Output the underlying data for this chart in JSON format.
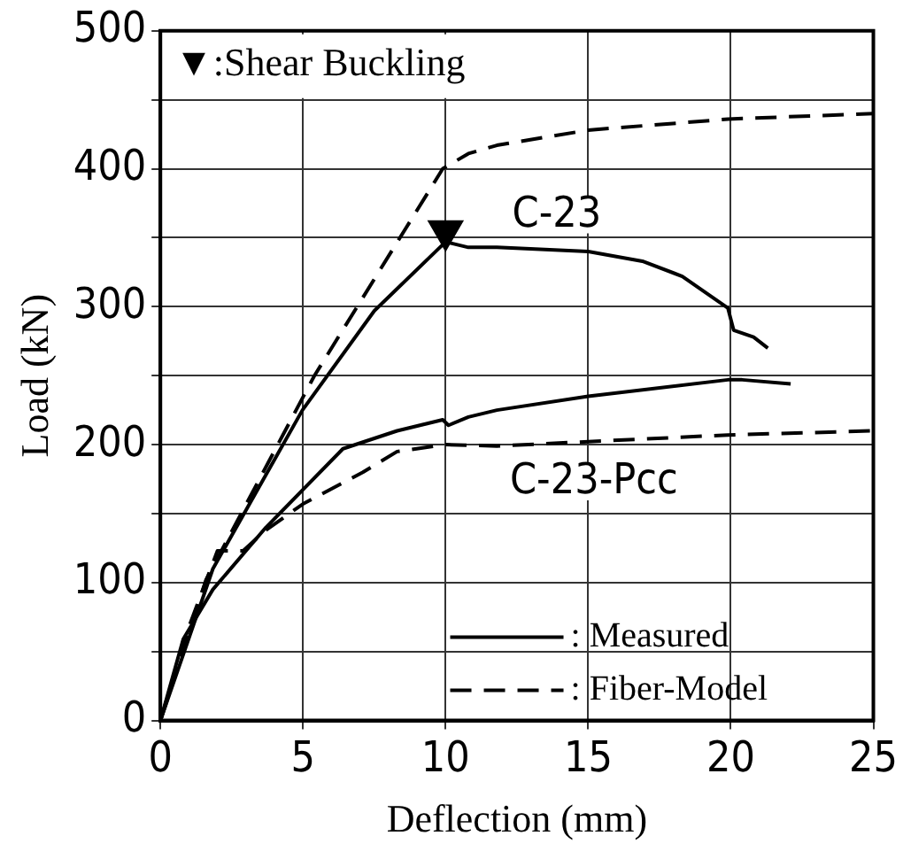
{
  "chart_data": {
    "type": "line",
    "xlabel": "Deflection (mm)",
    "ylabel": "Load (kN)",
    "xlim": [
      0,
      25
    ],
    "xticks": [
      0,
      5,
      10,
      15,
      20,
      25
    ],
    "ylim": [
      0,
      500
    ],
    "yticks": [
      0,
      {
        "value": 50,
        "label": null
      },
      100,
      {
        "value": 150,
        "label": null
      },
      200,
      {
        "value": 250,
        "label": null
      },
      300,
      {
        "value": 350,
        "label": null
      },
      400,
      {
        "value": 450,
        "label": null
      },
      500
    ],
    "grid": true,
    "legend": "bottom right",
    "marker": "none",
    "annotations": [
      "▼:Shear Buckling",
      "C-23",
      "C-23-Pcc"
    ],
    "series": [
      {
        "name": ": Measured",
        "color": "#000000",
        "line_style": "solid",
        "x": [
          0,
          1.84,
          4.98,
          7.5,
          10,
          10.8,
          11.8,
          15,
          16.9,
          18.3,
          19.9,
          20.1,
          20.8,
          21.3
        ],
        "values": [
          0,
          110,
          225,
          297,
          347,
          343,
          343,
          340,
          333,
          322,
          299,
          283,
          278,
          270
        ]
      },
      {
        "name": ": Fiber-Model",
        "color": "#000000",
        "line_style": "dashed",
        "x": [
          0,
          1.6,
          5.4,
          8.7,
          9.9,
          10.8,
          11.8,
          15,
          19.9,
          25
        ],
        "values": [
          0,
          102,
          250,
          360,
          400,
          411,
          417,
          428,
          436,
          440
        ]
      },
      {
        "color": "#000000",
        "line_style": "solid",
        "x": [
          0,
          0.8,
          1.84,
          3.7,
          6.4,
          8.3,
          9.9,
          10.1,
          10.8,
          11.8,
          15,
          19.9,
          20.4,
          22.1
        ],
        "values": [
          0,
          59,
          95,
          140,
          197,
          210,
          218,
          214,
          220,
          225,
          235,
          247,
          247,
          244
        ]
      },
      {
        "color": "#000000",
        "line_style": "dashed",
        "x": [
          0,
          1,
          2,
          2.9,
          3.7,
          5,
          7.1,
          8.3,
          10,
          11.8,
          19.9,
          25
        ],
        "values": [
          0,
          68,
          123,
          123,
          138,
          157,
          180,
          195,
          200,
          199,
          207,
          210
        ]
      },
      {
        "type": "scatter",
        "marker": "triangle",
        "color": "#000000",
        "x": [
          10
        ],
        "values": [
          355
        ]
      }
    ]
  }
}
